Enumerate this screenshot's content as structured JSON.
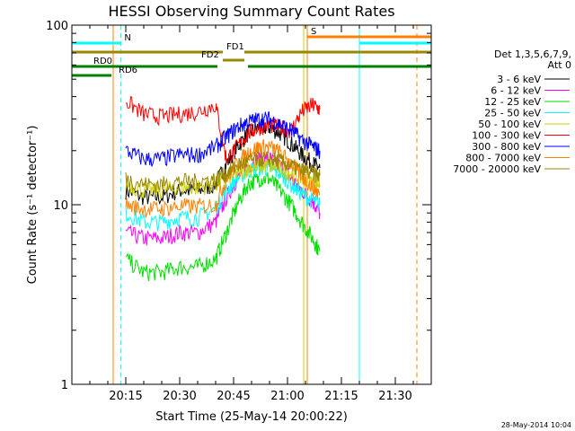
{
  "chart_data": {
    "type": "line",
    "title": "HESSI Observing Summary Count Rates",
    "xlabel": "Start Time (25-May-14 20:00:22)",
    "ylabel": "Count Rate (s⁻¹ detector⁻¹)",
    "yscale": "log",
    "ylim": [
      1,
      100
    ],
    "xlim": [
      "20:00",
      "21:40"
    ],
    "x_ticks": [
      "20:15",
      "20:30",
      "20:45",
      "21:00",
      "21:15",
      "21:30"
    ],
    "x_tick_minutes": [
      15,
      30,
      45,
      60,
      75,
      90
    ],
    "y_tick_labels": [
      "1",
      "10",
      "100"
    ],
    "y_ticks": [
      1,
      10,
      100
    ],
    "legend": {
      "header": [
        "Det 1,3,5,6,7,9,",
        "Att 0"
      ],
      "placement": "right"
    },
    "series": [
      {
        "name": "3 - 6 keV",
        "color": "#000000",
        "x": [
          15,
          20,
          25,
          30,
          35,
          40,
          43,
          46,
          49,
          52,
          55,
          58,
          61,
          64,
          67,
          69
        ],
        "y": [
          12,
          11,
          11,
          12,
          12,
          13,
          17,
          21,
          25,
          27,
          27,
          25,
          22,
          19,
          17,
          16
        ]
      },
      {
        "name": "6 - 12 keV",
        "color": "#ff00ff",
        "x": [
          15,
          20,
          25,
          30,
          35,
          40,
          43,
          46,
          49,
          52,
          55,
          58,
          61,
          64,
          67,
          69
        ],
        "y": [
          7,
          6.5,
          6.5,
          7,
          7,
          8,
          11,
          14,
          16.5,
          18,
          18,
          16.5,
          14,
          12,
          10.5,
          9
        ]
      },
      {
        "name": "12 - 25 keV",
        "color": "#00e000",
        "x": [
          15,
          20,
          25,
          30,
          35,
          40,
          43,
          46,
          49,
          52,
          55,
          58,
          61,
          64,
          67,
          69
        ],
        "y": [
          5,
          4.2,
          4.2,
          4.5,
          4.5,
          5,
          7,
          10,
          13,
          14,
          14,
          12,
          10,
          8,
          6.5,
          5.5
        ]
      },
      {
        "name": "25 - 50 keV",
        "color": "#00ffff",
        "x": [
          15,
          20,
          25,
          30,
          35,
          40,
          43,
          46,
          49,
          52,
          55,
          58,
          61,
          64,
          67,
          69
        ],
        "y": [
          9,
          8,
          8,
          8.5,
          8.5,
          9.5,
          12,
          14,
          15.5,
          16,
          16,
          15,
          13,
          11.5,
          10.5,
          10
        ]
      },
      {
        "name": "50 - 100 keV",
        "color": "#d0d000",
        "x": [
          15,
          20,
          25,
          30,
          35,
          40,
          43,
          46,
          49,
          52,
          55,
          58,
          61,
          64,
          67,
          69
        ],
        "y": [
          13,
          12,
          12,
          12.5,
          12.5,
          13,
          14,
          15,
          16,
          16.5,
          16.5,
          16,
          15,
          14,
          13.5,
          13
        ]
      },
      {
        "name": "100 - 300 keV",
        "color": "#ff0000",
        "x": [
          15,
          20,
          25,
          30,
          35,
          40,
          43,
          46,
          49,
          52,
          55,
          58,
          61,
          64,
          67,
          69
        ],
        "y": [
          38,
          32,
          31,
          32,
          33,
          36,
          18,
          21,
          25,
          27,
          28,
          27,
          26,
          33,
          36,
          34
        ]
      },
      {
        "name": "300 - 800 keV",
        "color": "#0000ff",
        "x": [
          15,
          20,
          25,
          30,
          35,
          40,
          43,
          46,
          49,
          52,
          55,
          58,
          61,
          64,
          67,
          69
        ],
        "y": [
          20,
          18,
          18,
          19,
          19,
          21,
          24,
          27,
          29,
          30,
          30,
          28,
          26,
          23,
          21,
          20
        ]
      },
      {
        "name": "800 - 7000 keV",
        "color": "#ff8000",
        "x": [
          15,
          20,
          25,
          30,
          35,
          40,
          43,
          46,
          49,
          52,
          55,
          58,
          61,
          64,
          67,
          69
        ],
        "y": [
          10,
          9.5,
          9.5,
          9.8,
          9.8,
          10,
          14,
          17,
          19.5,
          21,
          21,
          19.5,
          17,
          14.5,
          12.5,
          11.5
        ]
      },
      {
        "name": "7000 - 20000 keV",
        "color": "#998800",
        "x": [
          15,
          20,
          25,
          30,
          35,
          40,
          43,
          46,
          49,
          52,
          55,
          58,
          61,
          64,
          67,
          69
        ],
        "y": [
          14,
          13,
          13,
          13.5,
          13.5,
          14,
          15,
          16.5,
          17.5,
          18,
          18,
          17.5,
          16.5,
          15.5,
          15,
          14.5
        ]
      }
    ],
    "annotations": [
      {
        "label": "N",
        "color": "#00ffff",
        "row": 1,
        "segments": [
          [
            0,
            13.6
          ],
          [
            80,
            100
          ]
        ]
      },
      {
        "label": "S",
        "color": "#ff8000",
        "row": 0,
        "segments": [
          [
            65.5,
            100
          ]
        ]
      },
      {
        "label": "FD1",
        "color": "#998800",
        "row": 2,
        "segments": [
          [
            0,
            42
          ],
          [
            48,
            100
          ]
        ]
      },
      {
        "label": "FD2",
        "color": "#998800",
        "row": 3,
        "segments": [
          [
            42,
            48
          ]
        ]
      },
      {
        "label": "RD0",
        "color": "#008000",
        "row": 4,
        "segments": [
          [
            0,
            40.5
          ],
          [
            49,
            62.5
          ],
          [
            62.5,
            100
          ]
        ]
      },
      {
        "label": "RD6",
        "color": "#008000",
        "row": 5,
        "segments": [
          [
            0,
            11
          ]
        ]
      }
    ],
    "vertical_lines": [
      {
        "x": 0,
        "color": "#00ffff",
        "style": "solid"
      },
      {
        "x": 13.6,
        "color": "#00ffff",
        "style": "dashed"
      },
      {
        "x": 11.5,
        "color": "#ff8000",
        "style": "solid"
      },
      {
        "x": 65.5,
        "color": "#ff8000",
        "style": "solid"
      },
      {
        "x": 64.5,
        "color": "#d0d000",
        "style": "solid"
      },
      {
        "x": 80,
        "color": "#00ffff",
        "style": "solid"
      },
      {
        "x": 96,
        "color": "#00ffff",
        "style": "dashed"
      },
      {
        "x": 96,
        "color": "#ff8000",
        "style": "dashed"
      }
    ]
  },
  "footer": {
    "timestamp": "28-May-2014 10:04"
  }
}
